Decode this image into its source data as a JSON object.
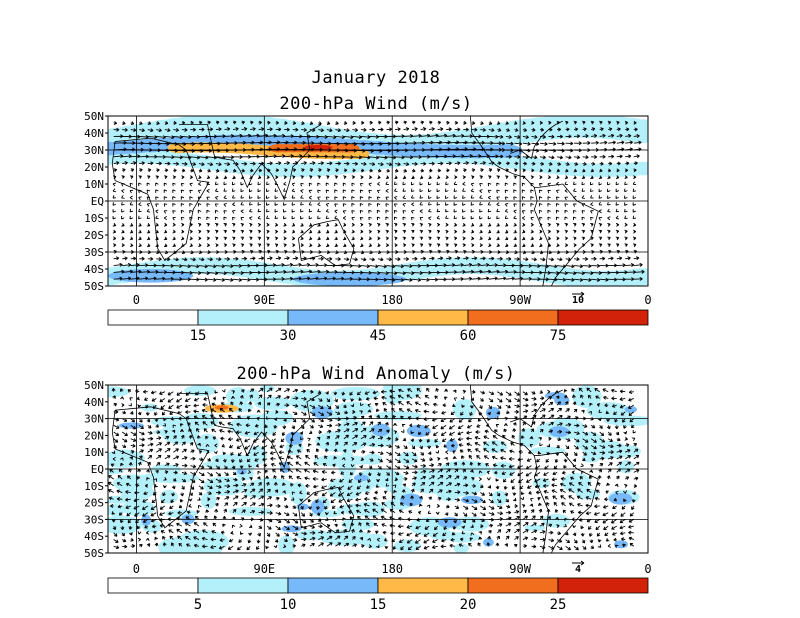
{
  "figure": {
    "title_line1": "January 2018",
    "panels": [
      {
        "id": "total",
        "title": "200-hPa Wind (m/s)",
        "lat_labels": [
          "50N",
          "40N",
          "30N",
          "20N",
          "10N",
          "EQ",
          "10S",
          "20S",
          "30S",
          "40S",
          "50S"
        ],
        "lon_labels": [
          "0",
          "90E",
          "180",
          "90W",
          "0"
        ],
        "vector_ref_label": "10",
        "colorbar": {
          "colors": [
            "#ffffff",
            "#b4f0fa",
            "#78b9fa",
            "#ffb946",
            "#f06e1e",
            "#d2230a"
          ],
          "ticks": [
            "15",
            "30",
            "45",
            "60",
            "75"
          ]
        }
      },
      {
        "id": "anomaly",
        "title": "200-hPa Wind Anomaly (m/s)",
        "lat_labels": [
          "50N",
          "40N",
          "30N",
          "20N",
          "10N",
          "EQ",
          "10S",
          "20S",
          "30S",
          "40S",
          "50S"
        ],
        "lon_labels": [
          "0",
          "90E",
          "180",
          "90W",
          "0"
        ],
        "vector_ref_label": "4",
        "colorbar": {
          "colors": [
            "#ffffff",
            "#b4f0fa",
            "#78b9fa",
            "#ffb946",
            "#f06e1e",
            "#d2230a"
          ],
          "ticks": [
            "5",
            "10",
            "15",
            "20",
            "25"
          ]
        }
      }
    ]
  }
}
